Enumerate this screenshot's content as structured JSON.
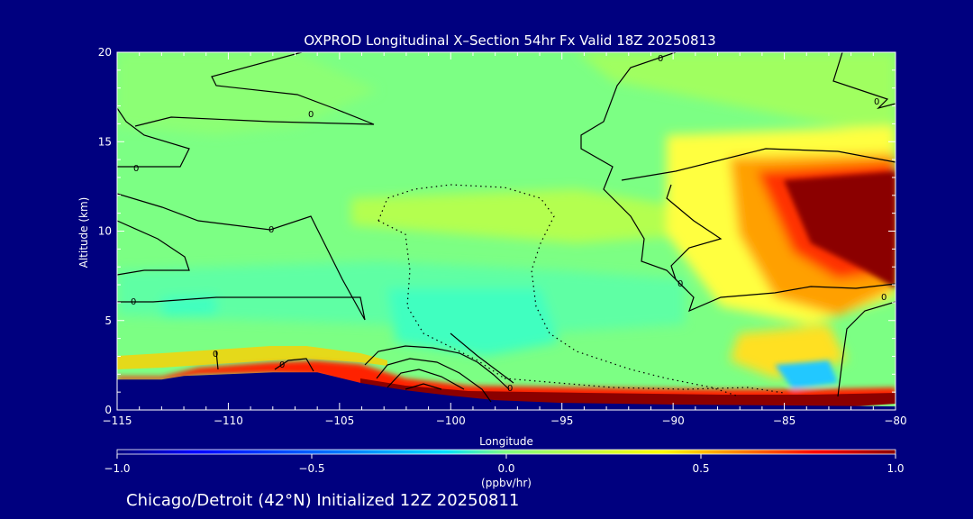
{
  "chart_data": {
    "type": "heatmap",
    "title": "OXPROD Longitudinal X–Section 54hr  Fx Valid 18Z 20250813",
    "xlabel": "Longitude",
    "ylabel": "Altitude (km)",
    "xlim": [
      -115,
      -80
    ],
    "ylim": [
      0,
      20
    ],
    "x_ticks": [
      -115,
      -110,
      -105,
      -100,
      -95,
      -90,
      -85,
      -80
    ],
    "x_tick_labels": [
      "−115",
      "−110",
      "−105",
      "−100",
      "−95",
      "−90",
      "−85",
      "−80"
    ],
    "y_ticks": [
      0,
      5,
      10,
      15,
      20
    ],
    "y_tick_labels": [
      "0",
      "5",
      "10",
      "15",
      "20"
    ],
    "colorbar": {
      "min": -1.0,
      "max": 1.0,
      "ticks": [
        -1.0,
        -0.5,
        0.0,
        0.5,
        1.0
      ],
      "tick_labels": [
        "−1.0",
        "−0.5",
        "0.0",
        "0.5",
        "1.0"
      ],
      "units": "(ppbv/hr)",
      "colors": [
        "#00007f",
        "#0000ff",
        "#0080ff",
        "#00e0ff",
        "#40ffc0",
        "#80ff80",
        "#c0ff40",
        "#ffff00",
        "#ff8000",
        "#ff0000",
        "#8b0000"
      ]
    },
    "contour_label": "0",
    "terrain_km": [
      [
        -115,
        1.7
      ],
      [
        -113,
        1.7
      ],
      [
        -112,
        1.9
      ],
      [
        -110,
        2.0
      ],
      [
        -108,
        2.1
      ],
      [
        -106,
        2.1
      ],
      [
        -104,
        1.5
      ],
      [
        -102,
        1.1
      ],
      [
        -100,
        0.8
      ],
      [
        -98,
        0.55
      ],
      [
        -95,
        0.4
      ],
      [
        -90,
        0.3
      ],
      [
        -85,
        0.25
      ],
      [
        -80,
        0.2
      ]
    ],
    "subtitle": "Chicago/Detroit (42°N) Initialized 12Z 20250811"
  }
}
